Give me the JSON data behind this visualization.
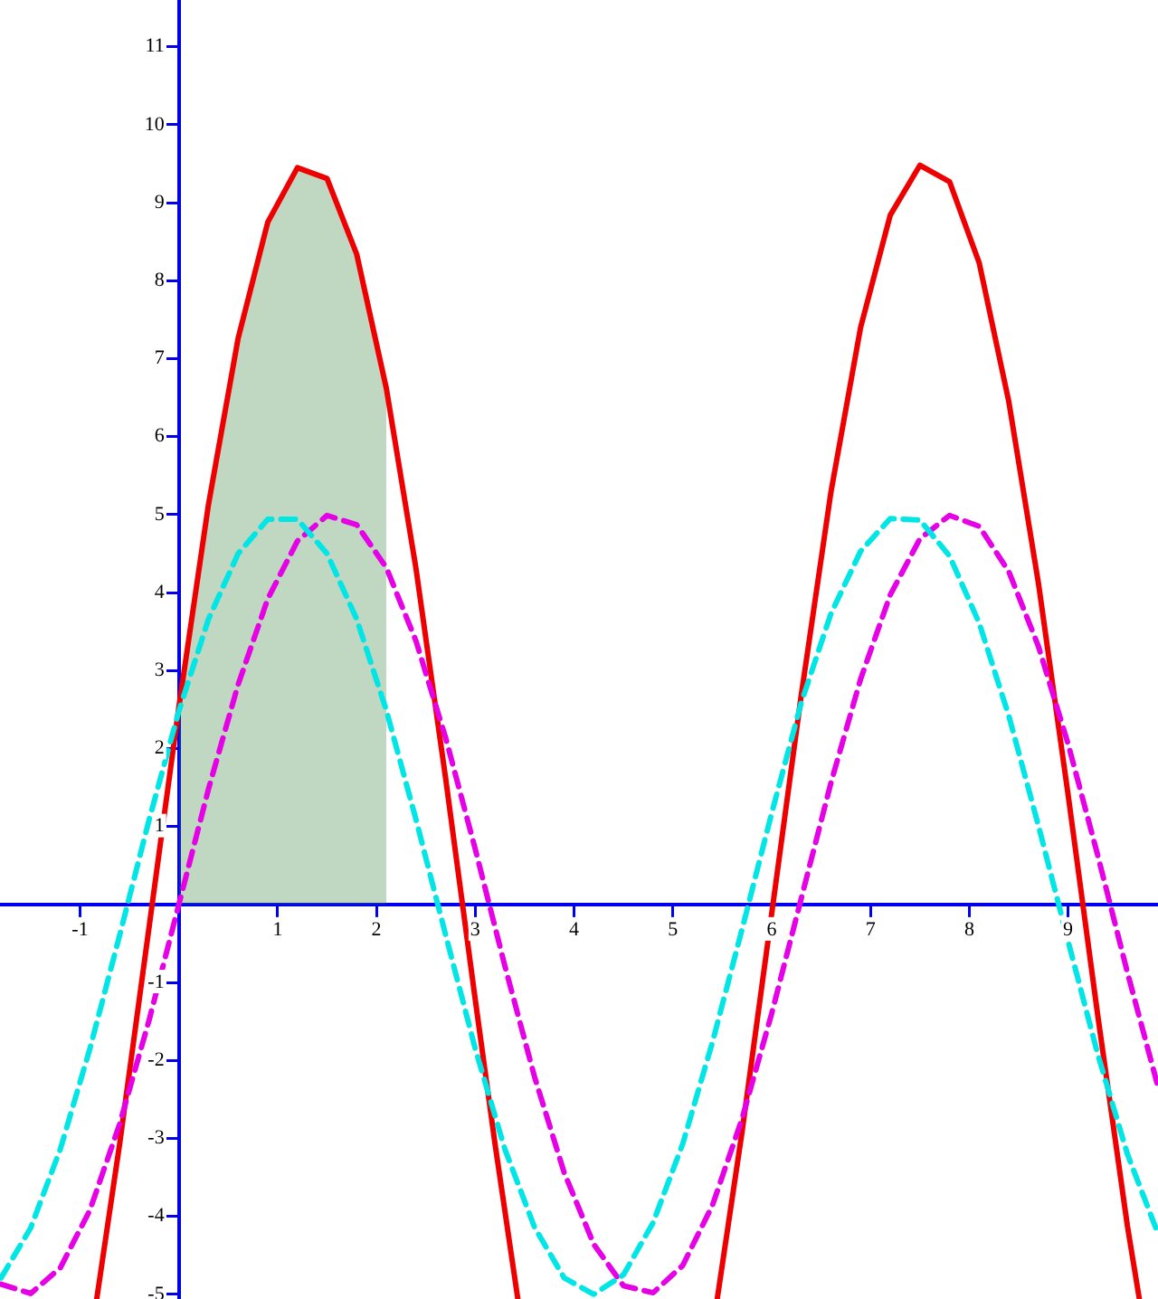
{
  "chart_data": {
    "type": "line",
    "xlim": [
      -1.81,
      9.91
    ],
    "ylim": [
      -5.06,
      11.6
    ],
    "xticks": [
      -1,
      1,
      2,
      3,
      4,
      5,
      6,
      7,
      8,
      9
    ],
    "yticks": [
      -5,
      -4,
      -3,
      -2,
      -1,
      {
        "value": 0,
        "label": null
      },
      1,
      2,
      3,
      4,
      5,
      6,
      7,
      8,
      9,
      10,
      11
    ],
    "grid": false,
    "legend": false,
    "marker": "none",
    "series": [
      {
        "type": "area",
        "color": "#2e7d32",
        "x": [
          0,
          0.3,
          0.6,
          0.9,
          1.2,
          1.5,
          1.8,
          2.1
        ],
        "values": [
          2.53,
          5.13,
          7.26,
          8.75,
          9.45,
          9.31,
          8.34,
          6.62
        ]
      },
      {
        "type": "line",
        "color": "#00e5e5",
        "line_style": "dashed",
        "x": [
          -1.8,
          -1.5,
          -1.2,
          -0.9,
          -0.6,
          -0.3,
          0,
          0.3,
          0.6,
          0.9,
          1.2,
          1.5,
          1.8,
          2.1,
          2.4,
          2.7,
          3.0,
          3.3,
          3.6,
          3.9,
          4.2,
          4.5,
          4.8,
          5.1,
          5.4,
          5.7,
          6.0,
          6.3,
          6.6,
          6.9,
          7.2,
          7.5,
          7.8,
          8.1,
          8.4,
          8.7,
          9.0,
          9.3,
          9.6,
          9.9
        ],
        "values": [
          -4.79,
          -4.15,
          -3.14,
          -1.85,
          -0.4,
          1.09,
          2.48,
          3.66,
          4.5,
          4.94,
          4.94,
          4.5,
          3.66,
          2.49,
          1.09,
          -0.39,
          -1.85,
          -3.14,
          -4.14,
          -4.79,
          -5.0,
          -4.75,
          -4.08,
          -3.07,
          -1.77,
          -0.32,
          1.17,
          2.59,
          3.73,
          4.53,
          4.95,
          4.93,
          4.47,
          3.61,
          2.42,
          1.01,
          -0.47,
          -1.92,
          -3.2,
          -4.19
        ]
      },
      {
        "type": "line",
        "color": "#e600e6",
        "line_style": "dashed",
        "x": [
          -1.8,
          -1.5,
          -1.2,
          -0.9,
          -0.6,
          -0.3,
          0,
          0.3,
          0.6,
          0.9,
          1.2,
          1.5,
          1.8,
          2.1,
          2.4,
          2.7,
          3.0,
          3.3,
          3.6,
          3.9,
          4.2,
          4.5,
          4.8,
          5.1,
          5.4,
          5.7,
          6.0,
          6.3,
          6.6,
          6.9,
          7.2,
          7.5,
          7.8,
          8.1,
          8.4,
          8.7,
          9.0,
          9.3,
          9.6,
          9.9
        ],
        "values": [
          -4.87,
          -4.99,
          -4.66,
          -3.92,
          -2.82,
          -1.48,
          0,
          1.48,
          2.82,
          3.92,
          4.66,
          4.99,
          4.87,
          4.32,
          3.38,
          2.14,
          0.71,
          -0.79,
          -2.21,
          -3.44,
          -4.36,
          -4.89,
          -4.98,
          -4.63,
          -3.86,
          -2.75,
          -1.4,
          0.08,
          1.56,
          2.89,
          3.97,
          4.69,
          4.99,
          4.85,
          4.27,
          3.31,
          2.06,
          0.63,
          -0.87,
          -2.29
        ]
      },
      {
        "type": "line",
        "color": "#ee0000",
        "line_style": "solid",
        "x": [
          -0.83,
          -0.6,
          -0.3,
          0,
          0.3,
          0.6,
          0.9,
          1.2,
          1.5,
          1.8,
          2.1,
          2.4,
          2.7,
          3.0,
          3.2,
          3.43,
          4.5,
          5.45,
          5.7,
          6.0,
          6.3,
          6.6,
          6.9,
          7.2,
          7.5,
          7.8,
          8.1,
          8.4,
          8.7,
          9.0,
          9.3,
          9.6,
          9.72
        ],
        "values": [
          -5.05,
          -3.08,
          -0.28,
          2.53,
          5.13,
          7.26,
          8.75,
          9.45,
          9.31,
          8.34,
          6.62,
          4.31,
          1.62,
          -1.22,
          -3.07,
          -5.05,
          null,
          -5.05,
          -2.92,
          -0.12,
          2.69,
          5.29,
          7.4,
          8.84,
          9.48,
          9.27,
          8.23,
          6.45,
          4.12,
          1.41,
          -1.42,
          -4.12,
          -5.05
        ]
      }
    ]
  }
}
